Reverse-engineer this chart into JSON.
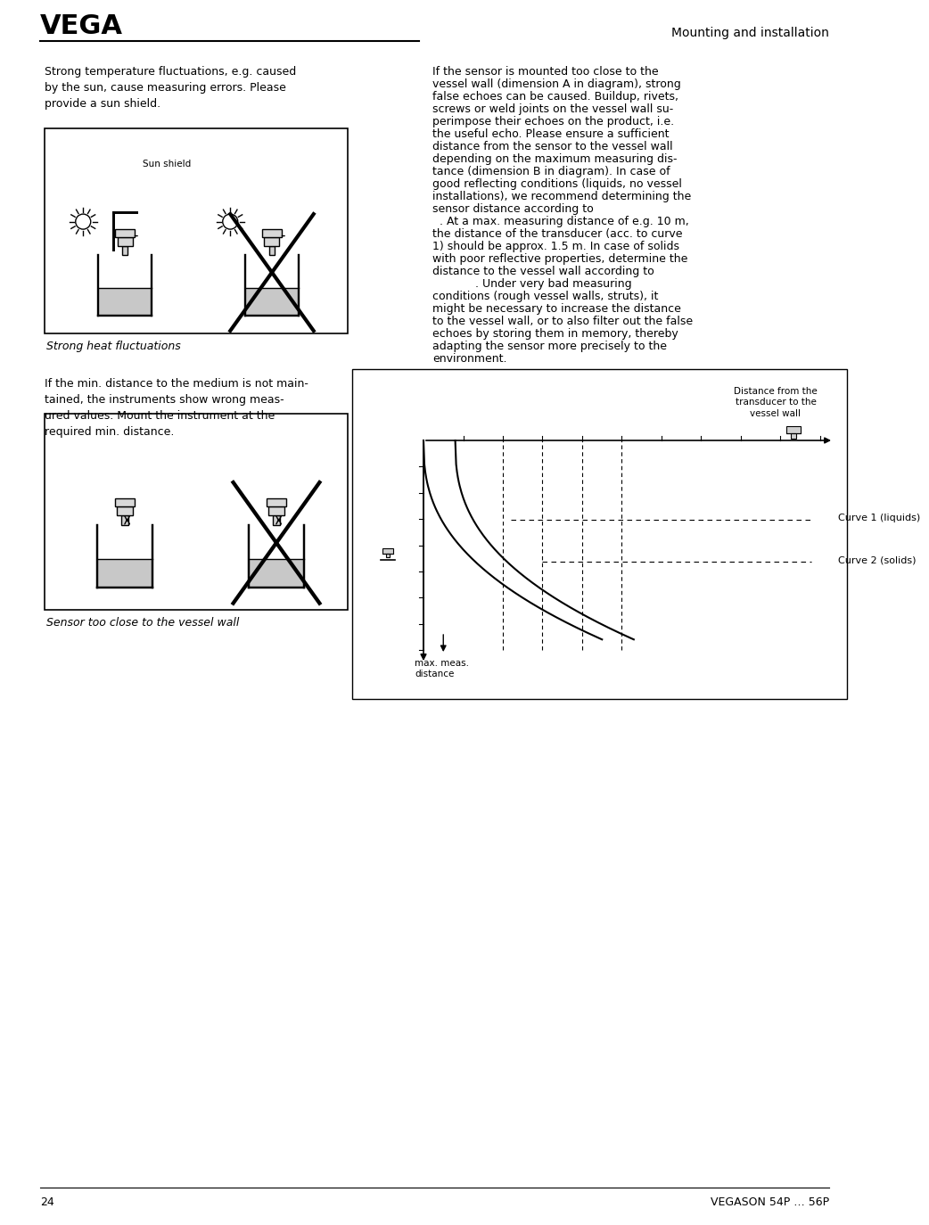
{
  "page_number": "24",
  "product_name": "VEGASON 54P … 56P",
  "header_title": "Mounting and installation",
  "logo_text": "VEGA",
  "left_para1": "Strong temperature fluctuations, e.g. caused\nby the sun, cause measuring errors. Please\nprovide a sun shield.",
  "caption1": "Strong heat fluctuations",
  "left_para2": "If the min. distance to the medium is not main-\ntained, the instruments show wrong meas-\nured values. Mount the instrument at the\nrequired min. distance.",
  "caption2": "Sensor too close to the vessel wall",
  "right_para": "If the sensor is mounted too close to the\nvessel wall (dimension A in diagram), strong\nfalse echoes can be caused. Buildup, rivets,\nscrews or weld joints on the vessel wall su-\nperimpose their echoes on the product, i.e.\nthe useful echo. Please ensure a sufficient\ndistance from the sensor to the vessel wall\ndepending on the maximum measuring dis-\ntance (dimension B in diagram). In case of\ngood reflecting conditions (liquids, no vessel\ninstallations), we recommend determining the\nsensor distance according to\n  . At a max. measuring distance of e.g. 10 m,\nthe distance of the transducer (acc. to curve\n1) should be approx. 1.5 m. In case of solids\nwith poor reflective properties, determine the\ndistance to the vessel wall according to\n            . Under very bad measuring\nconditions (rough vessel walls, struts), it\nmight be necessary to increase the distance\nto the vessel wall, or to also filter out the false\nechoes by storing them in memory, thereby\nadapting the sensor more precisely to the\nenvironment.",
  "graph_label_top": "Distance from the\ntransducer to the\nvessel wall",
  "curve1_label": "Curve 1 (liquids)",
  "curve2_label": "Curve 2 (solids)",
  "graph_xlabel": "max. meas.\ndistance",
  "bg_color": "#ffffff",
  "text_color": "#000000",
  "box_color": "#e0e0e0"
}
